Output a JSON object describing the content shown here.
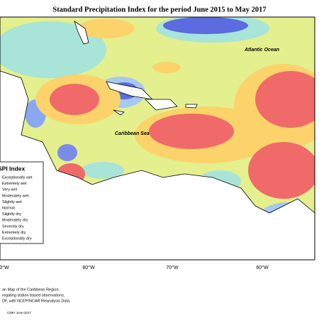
{
  "title": "Standard Precipitation Index for the period June 2015 to May 2017",
  "labels": {
    "atlantic": "Atlantic Ocean",
    "caribbean": "Caribbean Sea"
  },
  "legend": {
    "title": "SPI Index",
    "items": [
      "Exceptionally wet",
      "Extremely wet",
      "Very wet",
      "Moderately wet",
      "Slightly wet",
      "Normal",
      "Slightly dry",
      "Moderately dry",
      "Severely dry",
      "Extremely dry",
      "Exceptionally dry"
    ]
  },
  "longitudes": [
    "0°W",
    "80°W",
    "70°W",
    "60°W"
  ],
  "footer": [
    "an Map of the Caribbean Region.",
    "regating station based observations,",
    "DF, with NCEP/NCAR Reanalysis Data."
  ],
  "credit": "CIMH June-2017"
}
